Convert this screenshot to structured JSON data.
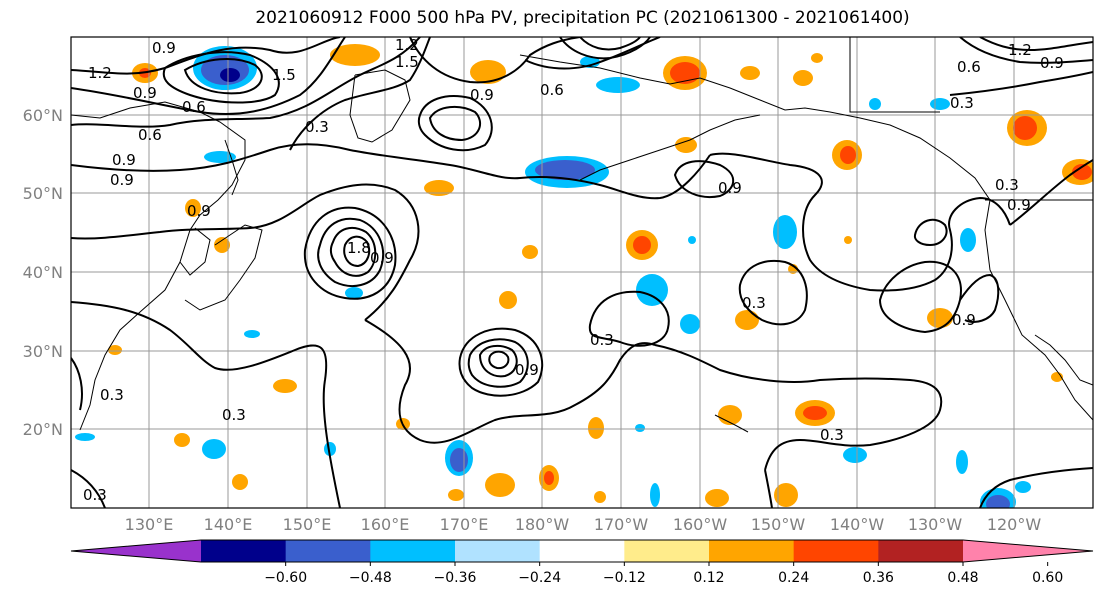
{
  "title": "2021060912 F000 500 hPa PV, precipitation PC (2021061300 - 2021061400)",
  "lat_labels": [
    "60°N",
    "50°N",
    "40°N",
    "30°N",
    "20°N"
  ],
  "lon_labels": [
    "130°E",
    "140°E",
    "150°E",
    "160°E",
    "170°E",
    "180°W",
    "170°W",
    "160°W",
    "150°W",
    "140°W",
    "130°W",
    "120°W"
  ],
  "colorbar": {
    "ticks": [
      "−0.60",
      "−0.48",
      "−0.36",
      "−0.24",
      "−0.12",
      "0.12",
      "0.24",
      "0.36",
      "0.48",
      "0.60"
    ],
    "colors": [
      "#9932cc",
      "#00008b",
      "#3a5fcd",
      "#00bfff",
      "#b0e2ff",
      "#ffffff",
      "#ffec8b",
      "#ffa500",
      "#ff4500",
      "#b22222",
      "#ff82ab"
    ]
  },
  "contour_labels": [
    "0.9",
    "1.2",
    "0.9",
    "0.6",
    "1.5",
    "1.2",
    "1.5",
    "0.9",
    "0.6",
    "0.3",
    "1.2",
    "0.9",
    "0.6",
    "0.9",
    "0.9",
    "0.9",
    "0.6",
    "1.8",
    "0.9",
    "0.3",
    "0.3",
    "0.3",
    "0.9",
    "0.3",
    "0.9",
    "0.3",
    "0.3",
    "0.9",
    "0.3",
    "0.9",
    "0.3"
  ]
}
